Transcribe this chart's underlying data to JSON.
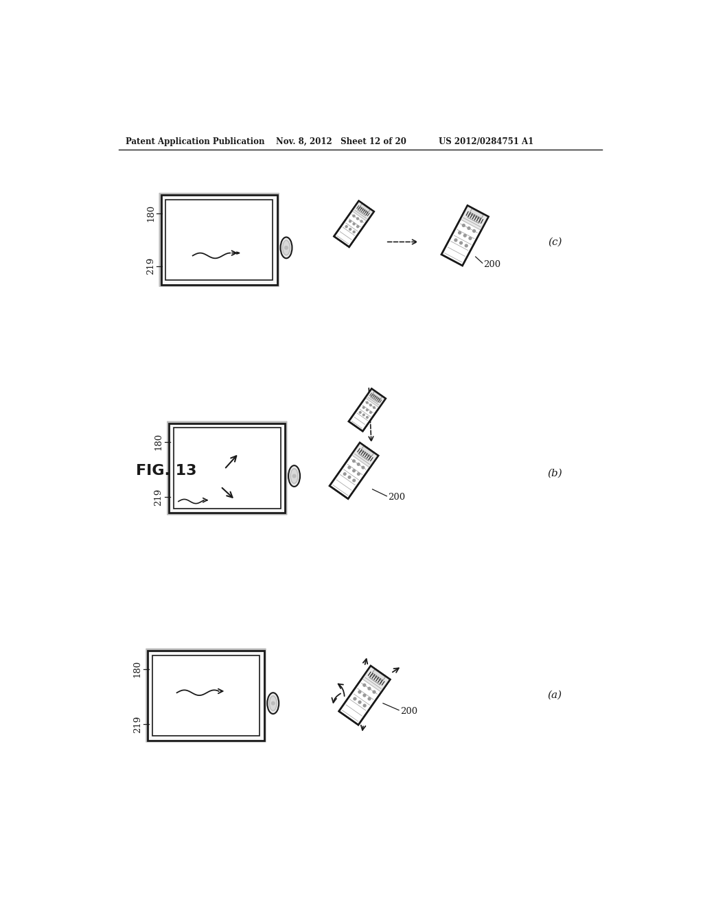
{
  "header_left": "Patent Application Publication",
  "header_mid": "Nov. 8, 2012   Sheet 12 of 20",
  "header_right": "US 2012/0284751 A1",
  "fig_label": "FIG. 13",
  "bg_color": "#ffffff",
  "line_color": "#1a1a1a",
  "gray_color": "#999999",
  "light_gray": "#bbbbbb",
  "dark_gray": "#555555",
  "ref_180": "180",
  "ref_219": "219",
  "ref_200": "200"
}
